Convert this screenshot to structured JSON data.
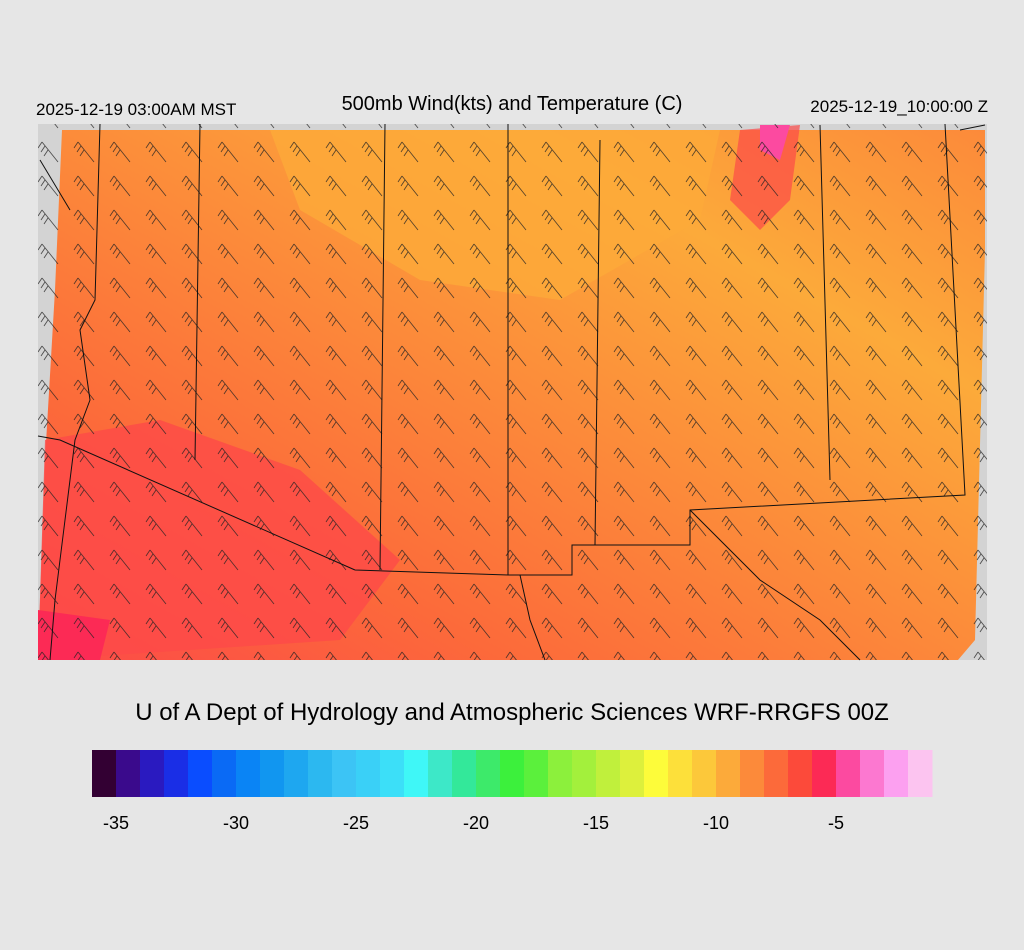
{
  "header": {
    "valid_local": "2025-12-19 03:00AM MST",
    "title": "500mb Wind(kts) and Temperature (C)",
    "valid_utc": "2025-12-19_10:00:00 Z"
  },
  "credit": "U of A Dept of Hydrology and Atmospheric Sciences WRF-RRGFS 00Z",
  "colorbar": {
    "range": [
      -36,
      -1
    ],
    "ticks": [
      -35,
      -30,
      -25,
      -20,
      -15,
      -10,
      -5
    ],
    "colors": [
      "#330033",
      "#3a0a8c",
      "#2a1ac0",
      "#1a2ee6",
      "#0a4dff",
      "#0a6af5",
      "#0a84f5",
      "#1196f0",
      "#1ea7f0",
      "#2cb8f0",
      "#3cc4f5",
      "#3ad0f7",
      "#3cdff8",
      "#3ff7f7",
      "#3de8c8",
      "#33e89a",
      "#3dea6a",
      "#3cf03c",
      "#5bf03c",
      "#8cf03c",
      "#a3f03c",
      "#c0f03c",
      "#ddf03c",
      "#fdfc3a",
      "#fde03a",
      "#fcc83a",
      "#fcaa3a",
      "#fc8a3a",
      "#fc6a3a",
      "#fc4a3a",
      "#fc2a55",
      "#fc4aa0",
      "#fc78d0",
      "#fca0f0",
      "#fcc4f0"
    ]
  }
}
